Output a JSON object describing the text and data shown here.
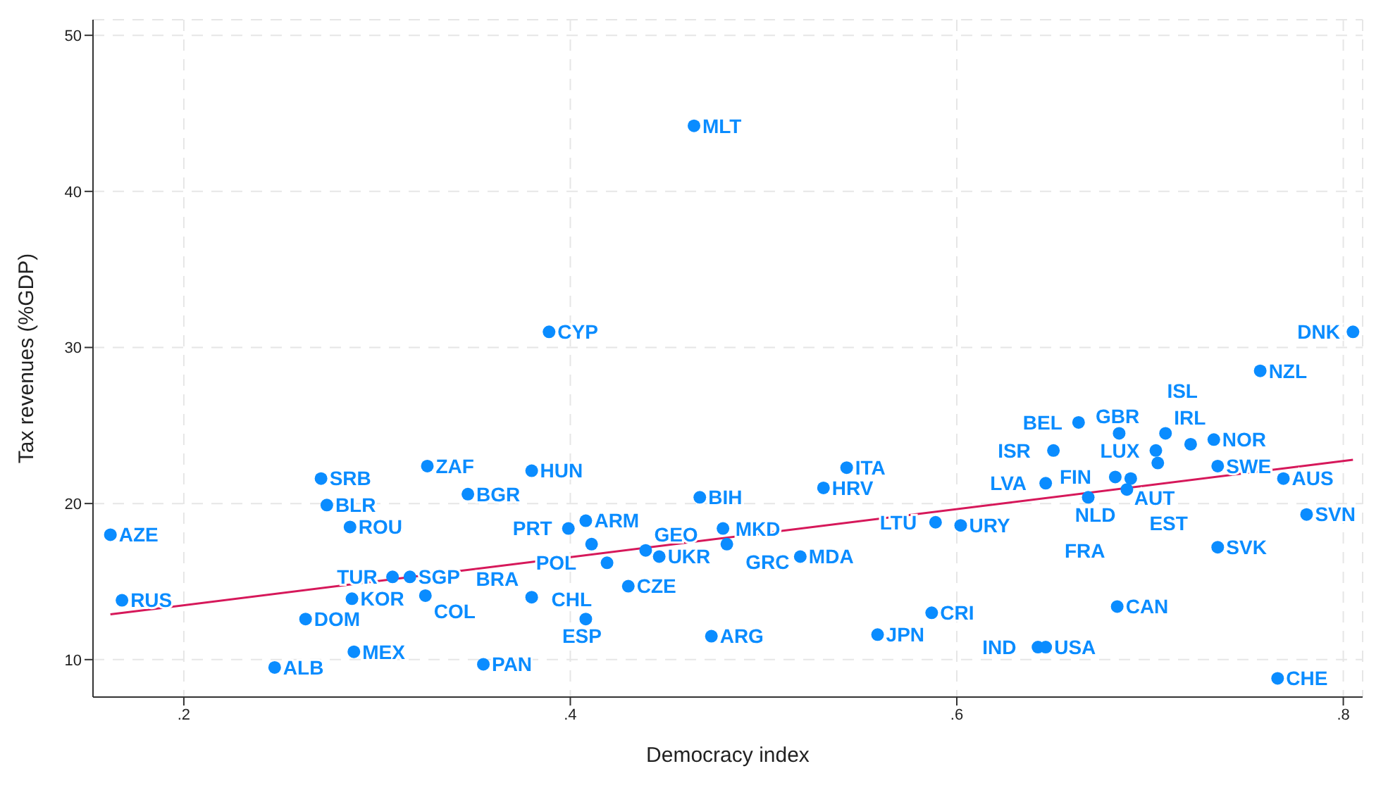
{
  "chart_data": {
    "type": "scatter",
    "xlabel": "Democracy index",
    "ylabel": "Tax revenues (%GDP)",
    "xlim": [
      0.153,
      0.81
    ],
    "ylim": [
      7.6,
      51
    ],
    "xticks": [
      {
        "value": 0.2,
        "label": ".2"
      },
      {
        "value": 0.4,
        "label": ".4"
      },
      {
        "value": 0.6,
        "label": ".6"
      },
      {
        "value": 0.8,
        "label": ".8"
      }
    ],
    "yticks": [
      10,
      20,
      30,
      40,
      50
    ],
    "grid": true,
    "series": [
      {
        "type": "scatter",
        "color": "#0a8cff",
        "marker": "circle",
        "x": [
          0.162,
          0.168,
          0.271,
          0.274,
          0.286,
          0.326,
          0.347,
          0.308,
          0.317,
          0.287,
          0.325,
          0.263,
          0.288,
          0.247,
          0.355,
          0.389,
          0.38,
          0.408,
          0.399,
          0.411,
          0.439,
          0.446,
          0.419,
          0.43,
          0.38,
          0.408,
          0.473,
          0.467,
          0.479,
          0.481,
          0.519,
          0.543,
          0.531,
          0.559,
          0.464,
          0.805,
          0.757,
          0.663,
          0.684,
          0.708,
          0.703,
          0.721,
          0.733,
          0.65,
          0.704,
          0.735,
          0.769,
          0.646,
          0.682,
          0.69,
          0.688,
          0.668,
          0.781,
          0.735,
          0.589,
          0.602,
          0.587,
          0.683,
          0.642,
          0.646,
          0.766
        ],
        "values": [
          18.0,
          13.8,
          21.6,
          19.9,
          18.5,
          22.4,
          20.6,
          15.3,
          15.3,
          13.9,
          14.1,
          12.6,
          10.5,
          9.5,
          9.7,
          31.0,
          22.1,
          18.9,
          18.4,
          17.4,
          17.0,
          16.6,
          16.2,
          14.7,
          14.0,
          12.6,
          11.5,
          20.4,
          18.4,
          17.4,
          16.6,
          22.3,
          21.0,
          11.6,
          44.2,
          31.0,
          28.5,
          25.2,
          24.5,
          24.5,
          23.4,
          23.8,
          24.1,
          23.4,
          22.6,
          22.4,
          21.6,
          21.3,
          21.7,
          21.6,
          20.9,
          20.4,
          19.3,
          17.2,
          18.8,
          18.6,
          13.0,
          13.4,
          10.8,
          10.8,
          8.8
        ],
        "value_labels": [
          "AZE",
          "RUS",
          "SRB",
          "BLR",
          "ROU",
          "ZAF",
          "BGR",
          "TUR",
          "SGP",
          "KOR",
          "COL",
          "DOM",
          "MEX",
          "ALB",
          "PAN",
          "CYP",
          "HUN",
          "ARM",
          "PRT",
          "POL",
          "GEO",
          "UKR",
          "CHL",
          "CZE",
          "BRA",
          "ESP",
          "ARG",
          "BIH",
          "GRC",
          "MKD",
          "MDA",
          "ITA",
          "HRV",
          "JPN",
          "MLT",
          "DNK",
          "NZL",
          "BEL",
          "GBR",
          "IRL",
          "LUX",
          "ISL",
          "NOR",
          "ISR",
          "AUT",
          "SWE",
          "AUS",
          "LVA",
          "FIN",
          "NLD",
          "EST",
          "FRA",
          "SVN",
          "SVK",
          "LTU",
          "URY",
          "CRI",
          "CAN",
          "IND",
          "USA",
          "CHE"
        ]
      },
      {
        "type": "line",
        "color": "#d6185a",
        "marker": "none",
        "line_style": "solid",
        "x": [
          0.162,
          0.805
        ],
        "values": [
          12.9,
          22.8
        ]
      }
    ]
  }
}
